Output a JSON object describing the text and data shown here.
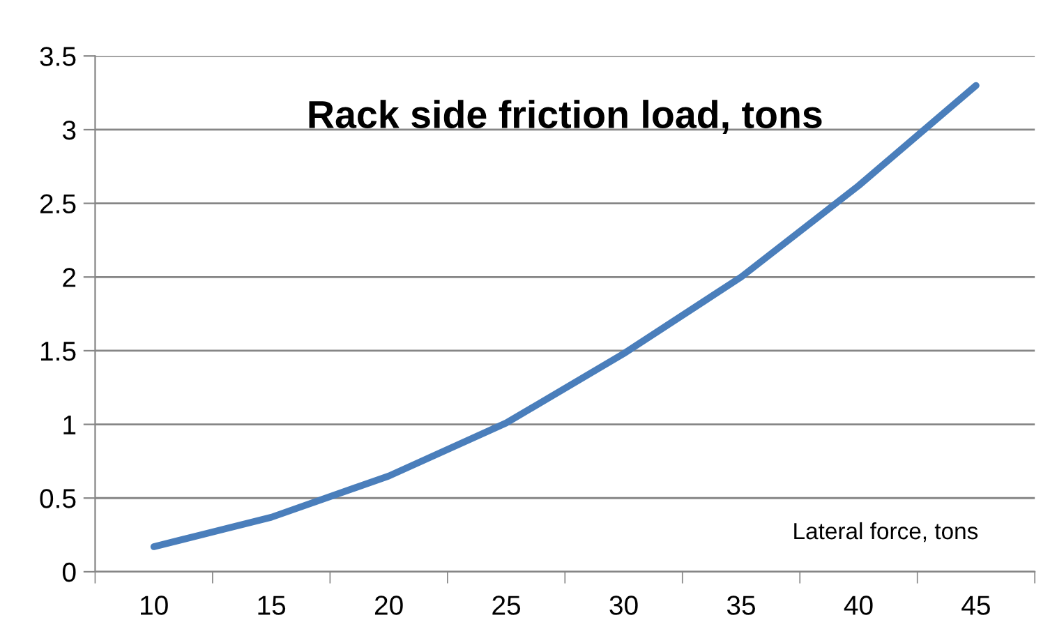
{
  "chart_data": {
    "type": "line",
    "title": "Rack side friction load, tons",
    "xlabel": "Lateral force, tons",
    "categories": [
      "10",
      "15",
      "20",
      "25",
      "30",
      "35",
      "40",
      "45"
    ],
    "series": [
      {
        "color": "#4a7ebb",
        "values": [
          0.17,
          0.37,
          0.65,
          1.01,
          1.48,
          2.0,
          2.62,
          3.3
        ]
      }
    ],
    "ylim": [
      0,
      3.5
    ],
    "yticks": [
      0,
      0.5,
      1,
      1.5,
      2,
      2.5,
      3,
      3.5
    ],
    "grid": "y",
    "legend": false,
    "marker": "none",
    "line_style": "solid"
  }
}
